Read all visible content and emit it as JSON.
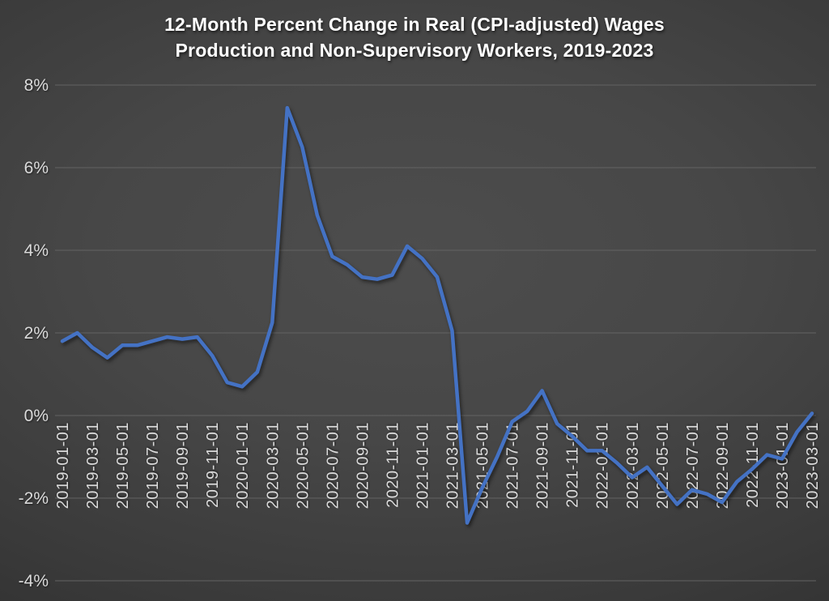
{
  "title": {
    "line1": "12-Month Percent Change in Real (CPI-adjusted) Wages",
    "line2": "Production and Non-Supervisory Workers, 2019-2023"
  },
  "colors": {
    "line": "#4472C4",
    "grid": "#636363",
    "tick_label": "#dadada",
    "title": "#ffffff"
  },
  "chart_data": {
    "type": "line",
    "title": "12-Month Percent Change in Real (CPI-adjusted) Wages Production and Non-Supervisory Workers, 2019-2023",
    "xlabel": "",
    "ylabel": "",
    "legend": "none",
    "grid": "horizontal",
    "ylim": [
      -4,
      8
    ],
    "y_tick_labels": [
      "8%",
      "6%",
      "4%",
      "2%",
      "0%",
      "-2%",
      "-4%"
    ],
    "y_tick_values": [
      8,
      6,
      4,
      2,
      0,
      -2,
      -4
    ],
    "x_tick_every": 2,
    "x": [
      "2019-01-01",
      "2019-02-01",
      "2019-03-01",
      "2019-04-01",
      "2019-05-01",
      "2019-06-01",
      "2019-07-01",
      "2019-08-01",
      "2019-09-01",
      "2019-10-01",
      "2019-11-01",
      "2019-12-01",
      "2020-01-01",
      "2020-02-01",
      "2020-03-01",
      "2020-04-01",
      "2020-05-01",
      "2020-06-01",
      "2020-07-01",
      "2020-08-01",
      "2020-09-01",
      "2020-10-01",
      "2020-11-01",
      "2020-12-01",
      "2021-01-01",
      "2021-02-01",
      "2021-03-01",
      "2021-04-01",
      "2021-05-01",
      "2021-06-01",
      "2021-07-01",
      "2021-08-01",
      "2021-09-01",
      "2021-10-01",
      "2021-11-01",
      "2021-12-01",
      "2022-01-01",
      "2022-02-01",
      "2022-03-01",
      "2022-04-01",
      "2022-05-01",
      "2022-06-01",
      "2022-07-01",
      "2022-08-01",
      "2022-09-01",
      "2022-10-01",
      "2022-11-01",
      "2022-12-01",
      "2023-01-01",
      "2023-02-01",
      "2023-03-01"
    ],
    "series": [
      {
        "name": "Real wages, 12-month percent change",
        "values": [
          1.8,
          2.0,
          1.65,
          1.4,
          1.7,
          1.7,
          1.8,
          1.9,
          1.85,
          1.9,
          1.45,
          0.8,
          0.7,
          1.05,
          2.25,
          7.45,
          6.5,
          4.85,
          3.85,
          3.65,
          3.35,
          3.3,
          3.4,
          4.1,
          3.8,
          3.35,
          2.05,
          -2.6,
          -1.75,
          -1.0,
          -0.15,
          0.1,
          0.6,
          -0.2,
          -0.5,
          -0.85,
          -0.85,
          -1.15,
          -1.5,
          -1.25,
          -1.7,
          -2.15,
          -1.8,
          -1.9,
          -2.1,
          -1.6,
          -1.3,
          -0.95,
          -1.05,
          -0.4,
          0.05
        ]
      }
    ]
  }
}
